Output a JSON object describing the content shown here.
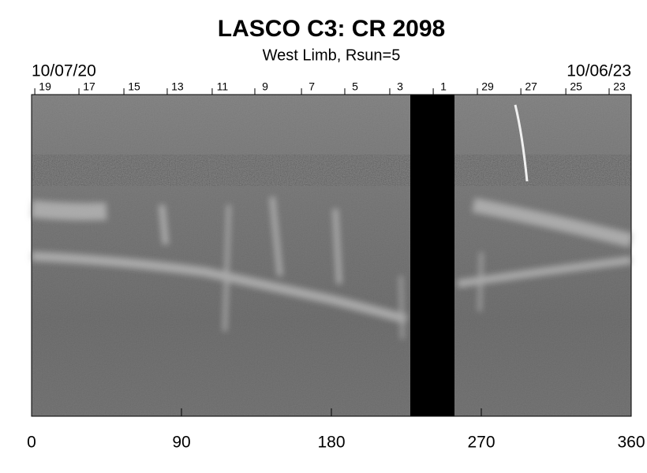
{
  "chart_data": {
    "type": "synoptic-map",
    "title": "LASCO C3: CR 2098",
    "subtitle": "West Limb, Rsun=5",
    "start_date": "10/07/20",
    "end_date": "10/06/23",
    "xlim": [
      0,
      360
    ],
    "xticks": [
      0,
      90,
      180,
      270,
      360
    ],
    "day_ticks": {
      "x": [
        8.1,
        34.6,
        61.6,
        87.6,
        114.6,
        140.2,
        168.2,
        194.2,
        221.2,
        247.3,
        273.8,
        299.9,
        326.9,
        352.9
      ],
      "labels": [
        19,
        17,
        15,
        13,
        11,
        9,
        7,
        5,
        3,
        1,
        29,
        27,
        25,
        23
      ]
    }
  }
}
